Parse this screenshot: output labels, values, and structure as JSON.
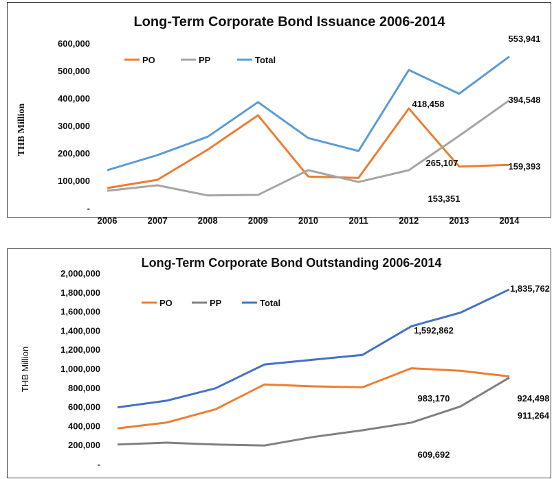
{
  "chart_data": [
    {
      "type": "line",
      "title": "Long-Term Corporate Bond Issuance  2006-2014",
      "ylabel": "THB Million",
      "x": [
        "2006",
        "2007",
        "2008",
        "2009",
        "2010",
        "2011",
        "2012",
        "2013",
        "2014"
      ],
      "ylim": [
        0,
        600000
      ],
      "yticks": [
        "-",
        "100,000",
        "200,000",
        "300,000",
        "400,000",
        "500,000",
        "600,000"
      ],
      "legend": "top-left",
      "grid": false,
      "series": [
        {
          "name": "PO",
          "color": "#ED7D31",
          "values": [
            75000,
            105000,
            215000,
            340000,
            117000,
            112000,
            365000,
            153351,
            159393
          ]
        },
        {
          "name": "PP",
          "color": "#A5A5A5",
          "values": [
            65000,
            85000,
            48000,
            50000,
            140000,
            97000,
            140000,
            265107,
            394548
          ]
        },
        {
          "name": "Total",
          "color": "#5B9BD5",
          "values": [
            140000,
            195000,
            262000,
            388000,
            257000,
            210000,
            505000,
            418458,
            553941
          ]
        }
      ],
      "annotations": [
        "553,941",
        "394,548",
        "418,458",
        "265,107",
        "159,393",
        "153,351"
      ]
    },
    {
      "type": "line",
      "title": "Long-Term Corporate Bond Outstanding 2006-2014",
      "ylabel": "THB Million",
      "x": [
        "2006",
        "2007",
        "2008",
        "2009",
        "2010",
        "2011",
        "2012",
        "2013",
        "2014"
      ],
      "ylim": [
        0,
        2000000
      ],
      "yticks": [
        "-",
        "200,000",
        "400,000",
        "600,000",
        "800,000",
        "1,000,000",
        "1,200,000",
        "1,400,000",
        "1,600,000",
        "1,800,000",
        "2,000,000"
      ],
      "legend": "top-left",
      "grid": false,
      "series": [
        {
          "name": "PO",
          "color": "#ED7D31",
          "values": [
            380000,
            440000,
            580000,
            840000,
            820000,
            810000,
            1010000,
            983170,
            924498
          ]
        },
        {
          "name": "PP",
          "color": "#808080",
          "values": [
            210000,
            230000,
            210000,
            200000,
            290000,
            360000,
            440000,
            609692,
            911264
          ]
        },
        {
          "name": "Total",
          "color": "#4472C4",
          "values": [
            600000,
            670000,
            800000,
            1050000,
            1100000,
            1150000,
            1450000,
            1592862,
            1835762
          ]
        }
      ],
      "annotations": [
        "1,835,762",
        "1,592,862",
        "983,170",
        "924,498",
        "911,264",
        "609,692"
      ]
    }
  ]
}
